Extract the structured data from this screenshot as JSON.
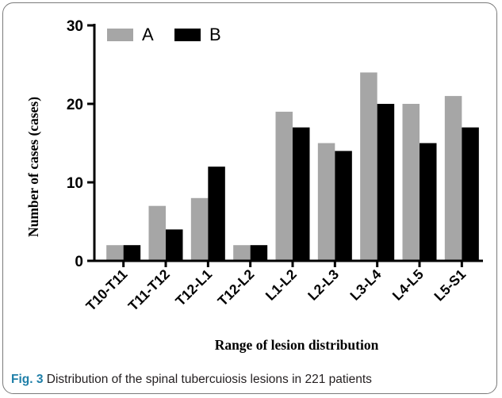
{
  "caption": {
    "label": "Fig. 3",
    "text": " Distribution of the spinal tubercuiosis lesions in 221 patients"
  },
  "chart_data": {
    "type": "bar",
    "xlabel": "Range of lesion distribution",
    "ylabel": "Number of cases (cases)",
    "ylim": [
      0,
      30
    ],
    "yticks": [
      0,
      10,
      20,
      30
    ],
    "grid": false,
    "legend_position": "top-left",
    "categories": [
      "T10-T11",
      "T11-T12",
      "T12-L1",
      "T12-L2",
      "L1-L2",
      "L2-L3",
      "L3-L4",
      "L4-L5",
      "L5-S1"
    ],
    "series": [
      {
        "name": "A",
        "color": "#a6a6a6",
        "values": [
          2,
          7,
          8,
          2,
          19,
          15,
          24,
          20,
          21
        ]
      },
      {
        "name": "B",
        "color": "#000000",
        "values": [
          2,
          4,
          12,
          2,
          17,
          14,
          20,
          15,
          17
        ]
      }
    ]
  }
}
